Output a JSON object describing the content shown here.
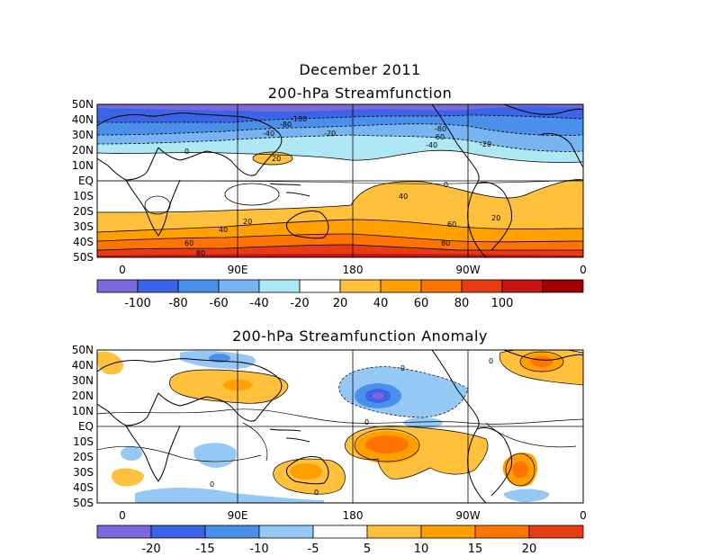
{
  "titles": {
    "main": "December 2011",
    "top_panel": "200-hPa Streamfunction",
    "bottom_panel": "200-hPa Streamfunction Anomaly"
  },
  "axes": {
    "lat_labels": [
      "50N",
      "40N",
      "30N",
      "20N",
      "10N",
      "EQ",
      "10S",
      "20S",
      "30S",
      "40S",
      "50S"
    ],
    "lon_labels": [
      "0",
      "90E",
      "180",
      "90W",
      "0"
    ]
  },
  "top_colorbar": {
    "labels": [
      "-100",
      "-80",
      "-60",
      "-40",
      "-20",
      "20",
      "40",
      "60",
      "80",
      "100"
    ],
    "colors": [
      "#7b68d9",
      "#3c64e6",
      "#4a90eb",
      "#78b4f2",
      "#aee8f5",
      "#ffffff",
      "#ffc03c",
      "#ffa000",
      "#ff7300",
      "#e63c14",
      "#c81414",
      "#a00000"
    ]
  },
  "bottom_colorbar": {
    "labels": [
      "-20",
      "-15",
      "-10",
      "-5",
      "5",
      "10",
      "15",
      "20"
    ],
    "colors": [
      "#7b68d9",
      "#3c64e6",
      "#4a90eb",
      "#96c8f5",
      "#ffffff",
      "#ffc03c",
      "#ffa000",
      "#ff7300",
      "#e63c14"
    ]
  },
  "contour_labels_top": [
    "-100",
    "-80",
    "-40",
    "-20",
    "0",
    "-80",
    "-60",
    "-40",
    "-20",
    "0",
    "20",
    "40",
    "20",
    "40",
    "60",
    "80",
    "60",
    "80",
    "20"
  ],
  "contour_labels_bottom": [
    "0",
    "0",
    "0",
    "0",
    "0"
  ]
}
